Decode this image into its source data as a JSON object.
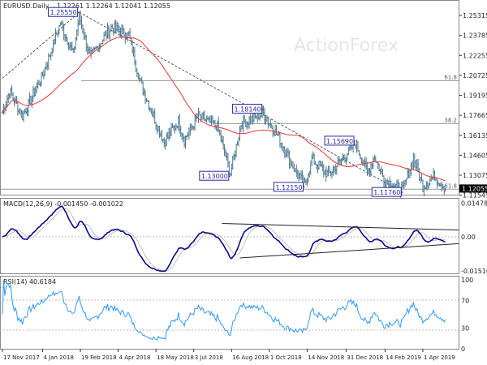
{
  "chart_data": [
    {
      "type": "ohlc",
      "title": "EURUSD.Daily",
      "ohlc_header": "1.12261 1.12264 1.12041 1.12055",
      "watermark": "ActionForex",
      "colors": {
        "bars": "#4d7891",
        "ma": "#ee3333",
        "label_border": "#2a2aa0",
        "label_text": "#2a2aa0",
        "fib": "#999999"
      },
      "y_ticks": [
        "1.25315",
        "1.23785",
        "1.22255",
        "1.20725",
        "1.19195",
        "1.17665",
        "1.16135",
        "1.14605",
        "1.13075",
        "1.11545"
      ],
      "ylim": [
        1.11545,
        1.25315
      ],
      "last_price": "1.12055",
      "x_ticks": [
        {
          "date": "2017-11-17",
          "label": "17 Nov 2017"
        },
        {
          "date": "2018-01-04",
          "label": "4 Jan 2018"
        },
        {
          "date": "2018-02-19",
          "label": "19 Feb 2018"
        },
        {
          "date": "2018-04-04",
          "label": "4 Apr 2018"
        },
        {
          "date": "2018-05-18",
          "label": "18 May 2018"
        },
        {
          "date": "2018-07-03",
          "label": "3 Jul 2018"
        },
        {
          "date": "2018-08-16",
          "label": "16 Aug 2018"
        },
        {
          "date": "2018-10-01",
          "label": "1 Oct 2018"
        },
        {
          "date": "2018-11-14",
          "label": "14 Nov 2018"
        },
        {
          "date": "2018-12-31",
          "label": "31 Dec 2018"
        },
        {
          "date": "2019-02-14",
          "label": "14 Feb 2019"
        },
        {
          "date": "2019-04-01",
          "label": "1 Apr 2019"
        }
      ],
      "close_path": [
        [
          "2017-11-17",
          1.179
        ],
        [
          "2017-11-27",
          1.195
        ],
        [
          "2017-12-12",
          1.176
        ],
        [
          "2017-12-29",
          1.2
        ],
        [
          "2018-01-04",
          1.207
        ],
        [
          "2018-01-25",
          1.247
        ],
        [
          "2018-02-09",
          1.224
        ],
        [
          "2018-02-16",
          1.253
        ],
        [
          "2018-03-01",
          1.221
        ],
        [
          "2018-03-27",
          1.244
        ],
        [
          "2018-04-17",
          1.238
        ],
        [
          "2018-05-01",
          1.201
        ],
        [
          "2018-05-29",
          1.156
        ],
        [
          "2018-06-14",
          1.172
        ],
        [
          "2018-06-21",
          1.158
        ],
        [
          "2018-07-09",
          1.176
        ],
        [
          "2018-07-31",
          1.168
        ],
        [
          "2018-08-15",
          1.132
        ],
        [
          "2018-08-28",
          1.17
        ],
        [
          "2018-09-24",
          1.178
        ],
        [
          "2018-10-12",
          1.158
        ],
        [
          "2018-10-31",
          1.134
        ],
        [
          "2018-11-12",
          1.123
        ],
        [
          "2018-11-20",
          1.143
        ],
        [
          "2018-12-10",
          1.131
        ],
        [
          "2019-01-10",
          1.155
        ],
        [
          "2019-01-24",
          1.133
        ],
        [
          "2019-02-01",
          1.145
        ],
        [
          "2019-02-13",
          1.128
        ],
        [
          "2019-03-07",
          1.119
        ],
        [
          "2019-03-20",
          1.144
        ],
        [
          "2019-04-01",
          1.122
        ],
        [
          "2019-04-15",
          1.13
        ],
        [
          "2019-04-26",
          1.1206
        ]
      ],
      "ma_period": 55,
      "annotations": [
        {
          "date": "2018-02-16",
          "price": 1.2555,
          "label": "1.25550"
        },
        {
          "date": "2018-09-24",
          "price": 1.1814,
          "label": "1.18140"
        },
        {
          "date": "2018-08-15",
          "price": 1.13,
          "label": "1.13000"
        },
        {
          "date": "2018-11-12",
          "price": 1.1215,
          "label": "1.12150"
        },
        {
          "date": "2019-01-10",
          "price": 1.1569,
          "label": "1.15690"
        },
        {
          "date": "2019-03-07",
          "price": 1.1176,
          "label": "1.11760"
        }
      ],
      "fib_levels": [
        {
          "price": 1.2032,
          "label": "61.8"
        },
        {
          "price": 1.1703,
          "label": "38.2"
        },
        {
          "price": 1.12,
          "label": "61.8"
        }
      ],
      "trendlines": [
        {
          "from": [
            "2017-11-17",
            1.205
          ],
          "to": [
            "2018-02-16",
            1.2555
          ]
        },
        {
          "from": [
            "2018-02-16",
            1.2555
          ],
          "to": [
            "2019-03-07",
            1.1176
          ]
        }
      ]
    },
    {
      "type": "line",
      "title": "MACD(12,26,9) -0.001450 -0.001022",
      "y_ticks": [
        "0.014786",
        "0.00",
        "-0.015107"
      ],
      "ylim": [
        -0.015107,
        0.014786
      ],
      "colors": {
        "macd": "#0b0b8a",
        "signal": "#c0c0c0"
      },
      "trendlines": [
        {
          "from": [
            "2018-08-06",
            0.0059
          ],
          "to": [
            "2019-04-30",
            0.003
          ]
        },
        {
          "from": [
            "2018-08-27",
            -0.0093
          ],
          "to": [
            "2019-04-30",
            -0.003
          ]
        }
      ]
    },
    {
      "type": "line",
      "title": "RSI(14) 40.6184",
      "y_ticks": [
        "100",
        "70",
        "30",
        "0"
      ],
      "ylim": [
        0,
        100
      ],
      "colors": {
        "rsi": "#3399ff"
      }
    }
  ]
}
